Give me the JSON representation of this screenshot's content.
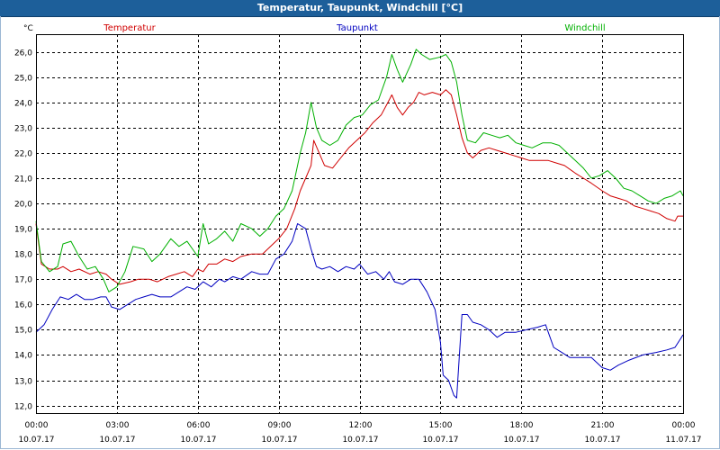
{
  "window": {
    "title": "Temperatur, Taupunkt, Windchill [°C]"
  },
  "chart_data": {
    "type": "line",
    "title": "Temperatur, Taupunkt, Windchill [°C]",
    "ylabel": "°C",
    "xlabel": "",
    "ylim": [
      11.7,
      26.7
    ],
    "xlim": [
      0,
      24
    ],
    "grid": true,
    "legend_placement": "top",
    "y_ticks": [
      "12,0",
      "13,0",
      "14,0",
      "15,0",
      "16,0",
      "17,0",
      "18,0",
      "19,0",
      "20,0",
      "21,0",
      "22,0",
      "23,0",
      "24,0",
      "25,0",
      "26,0"
    ],
    "x_ticks": [
      {
        "time": "00:00",
        "date": "10.07.17"
      },
      {
        "time": "03:00",
        "date": "10.07.17"
      },
      {
        "time": "06:00",
        "date": "10.07.17"
      },
      {
        "time": "09:00",
        "date": "10.07.17"
      },
      {
        "time": "12:00",
        "date": "10.07.17"
      },
      {
        "time": "15:00",
        "date": "10.07.17"
      },
      {
        "time": "18:00",
        "date": "10.07.17"
      },
      {
        "time": "21:00",
        "date": "10.07.17"
      },
      {
        "time": "00:00",
        "date": "11.07.17"
      }
    ],
    "series": [
      {
        "name": "Temperatur",
        "color": "#d00000",
        "points": [
          [
            0,
            19.2
          ],
          [
            0.2,
            17.6
          ],
          [
            0.5,
            17.4
          ],
          [
            0.8,
            17.4
          ],
          [
            1.0,
            17.5
          ],
          [
            1.3,
            17.3
          ],
          [
            1.6,
            17.4
          ],
          [
            2.0,
            17.2
          ],
          [
            2.3,
            17.3
          ],
          [
            2.6,
            17.2
          ],
          [
            2.8,
            17.0
          ],
          [
            3.1,
            16.8
          ],
          [
            3.5,
            16.9
          ],
          [
            3.8,
            17.0
          ],
          [
            4.2,
            17.0
          ],
          [
            4.5,
            16.9
          ],
          [
            4.9,
            17.1
          ],
          [
            5.2,
            17.2
          ],
          [
            5.5,
            17.3
          ],
          [
            5.8,
            17.1
          ],
          [
            6.0,
            17.4
          ],
          [
            6.2,
            17.3
          ],
          [
            6.4,
            17.6
          ],
          [
            6.7,
            17.6
          ],
          [
            7.0,
            17.8
          ],
          [
            7.3,
            17.7
          ],
          [
            7.6,
            17.9
          ],
          [
            8.0,
            18.0
          ],
          [
            8.4,
            18.0
          ],
          [
            8.7,
            18.3
          ],
          [
            9.0,
            18.6
          ],
          [
            9.3,
            19.0
          ],
          [
            9.6,
            19.8
          ],
          [
            9.8,
            20.5
          ],
          [
            10.0,
            21.0
          ],
          [
            10.2,
            21.5
          ],
          [
            10.3,
            22.5
          ],
          [
            10.5,
            22.0
          ],
          [
            10.7,
            21.5
          ],
          [
            11.0,
            21.4
          ],
          [
            11.3,
            21.8
          ],
          [
            11.6,
            22.2
          ],
          [
            11.9,
            22.5
          ],
          [
            12.2,
            22.8
          ],
          [
            12.5,
            23.2
          ],
          [
            12.8,
            23.5
          ],
          [
            13.0,
            23.9
          ],
          [
            13.2,
            24.3
          ],
          [
            13.4,
            23.8
          ],
          [
            13.6,
            23.5
          ],
          [
            13.8,
            23.8
          ],
          [
            14.0,
            24.0
          ],
          [
            14.2,
            24.4
          ],
          [
            14.4,
            24.3
          ],
          [
            14.7,
            24.4
          ],
          [
            15.0,
            24.3
          ],
          [
            15.2,
            24.5
          ],
          [
            15.4,
            24.3
          ],
          [
            15.6,
            23.5
          ],
          [
            15.8,
            22.6
          ],
          [
            16.0,
            22.0
          ],
          [
            16.2,
            21.8
          ],
          [
            16.5,
            22.1
          ],
          [
            16.8,
            22.2
          ],
          [
            17.1,
            22.1
          ],
          [
            17.4,
            22.0
          ],
          [
            17.7,
            21.9
          ],
          [
            18.0,
            21.8
          ],
          [
            18.3,
            21.7
          ],
          [
            18.6,
            21.7
          ],
          [
            19.0,
            21.7
          ],
          [
            19.3,
            21.6
          ],
          [
            19.6,
            21.5
          ],
          [
            20.0,
            21.2
          ],
          [
            20.3,
            21.0
          ],
          [
            20.6,
            20.8
          ],
          [
            21.0,
            20.5
          ],
          [
            21.3,
            20.3
          ],
          [
            21.6,
            20.2
          ],
          [
            21.9,
            20.1
          ],
          [
            22.2,
            19.9
          ],
          [
            22.5,
            19.8
          ],
          [
            22.8,
            19.7
          ],
          [
            23.1,
            19.6
          ],
          [
            23.4,
            19.4
          ],
          [
            23.7,
            19.3
          ],
          [
            23.8,
            19.5
          ],
          [
            24.0,
            19.5
          ]
        ]
      },
      {
        "name": "Taupunkt",
        "color": "#0000c0",
        "points": [
          [
            0,
            14.9
          ],
          [
            0.3,
            15.2
          ],
          [
            0.6,
            15.8
          ],
          [
            0.9,
            16.3
          ],
          [
            1.2,
            16.2
          ],
          [
            1.5,
            16.4
          ],
          [
            1.8,
            16.2
          ],
          [
            2.1,
            16.2
          ],
          [
            2.4,
            16.3
          ],
          [
            2.6,
            16.3
          ],
          [
            2.8,
            15.9
          ],
          [
            3.1,
            15.8
          ],
          [
            3.4,
            16.0
          ],
          [
            3.7,
            16.2
          ],
          [
            4.0,
            16.3
          ],
          [
            4.3,
            16.4
          ],
          [
            4.6,
            16.3
          ],
          [
            5.0,
            16.3
          ],
          [
            5.3,
            16.5
          ],
          [
            5.6,
            16.7
          ],
          [
            5.9,
            16.6
          ],
          [
            6.2,
            16.9
          ],
          [
            6.5,
            16.7
          ],
          [
            6.8,
            17.0
          ],
          [
            7.0,
            16.9
          ],
          [
            7.3,
            17.1
          ],
          [
            7.6,
            17.0
          ],
          [
            8.0,
            17.3
          ],
          [
            8.3,
            17.2
          ],
          [
            8.6,
            17.2
          ],
          [
            8.9,
            17.8
          ],
          [
            9.2,
            18.0
          ],
          [
            9.5,
            18.5
          ],
          [
            9.7,
            19.2
          ],
          [
            10.0,
            19.0
          ],
          [
            10.2,
            18.2
          ],
          [
            10.4,
            17.5
          ],
          [
            10.6,
            17.4
          ],
          [
            10.9,
            17.5
          ],
          [
            11.2,
            17.3
          ],
          [
            11.5,
            17.5
          ],
          [
            11.8,
            17.4
          ],
          [
            12.0,
            17.6
          ],
          [
            12.3,
            17.2
          ],
          [
            12.6,
            17.3
          ],
          [
            12.9,
            17.0
          ],
          [
            13.1,
            17.3
          ],
          [
            13.3,
            16.9
          ],
          [
            13.6,
            16.8
          ],
          [
            13.9,
            17.0
          ],
          [
            14.2,
            17.0
          ],
          [
            14.5,
            16.5
          ],
          [
            14.8,
            15.8
          ],
          [
            15.0,
            14.5
          ],
          [
            15.1,
            13.2
          ],
          [
            15.3,
            13.0
          ],
          [
            15.5,
            12.4
          ],
          [
            15.6,
            12.3
          ],
          [
            15.8,
            15.6
          ],
          [
            16.0,
            15.6
          ],
          [
            16.2,
            15.3
          ],
          [
            16.5,
            15.2
          ],
          [
            16.8,
            15.0
          ],
          [
            17.1,
            14.7
          ],
          [
            17.4,
            14.9
          ],
          [
            17.8,
            14.9
          ],
          [
            18.2,
            15.0
          ],
          [
            18.6,
            15.1
          ],
          [
            18.9,
            15.2
          ],
          [
            19.2,
            14.3
          ],
          [
            19.5,
            14.1
          ],
          [
            19.8,
            13.9
          ],
          [
            20.2,
            13.9
          ],
          [
            20.6,
            13.9
          ],
          [
            21.0,
            13.5
          ],
          [
            21.3,
            13.4
          ],
          [
            21.6,
            13.6
          ],
          [
            22.0,
            13.8
          ],
          [
            22.5,
            14.0
          ],
          [
            23.0,
            14.1
          ],
          [
            23.4,
            14.2
          ],
          [
            23.7,
            14.3
          ],
          [
            24.0,
            14.8
          ]
        ]
      },
      {
        "name": "Windchill",
        "color": "#00b000",
        "points": [
          [
            0,
            19.3
          ],
          [
            0.2,
            17.7
          ],
          [
            0.5,
            17.3
          ],
          [
            0.8,
            17.5
          ],
          [
            1.0,
            18.4
          ],
          [
            1.3,
            18.5
          ],
          [
            1.6,
            17.9
          ],
          [
            1.9,
            17.4
          ],
          [
            2.2,
            17.5
          ],
          [
            2.5,
            17.0
          ],
          [
            2.7,
            16.5
          ],
          [
            3.0,
            16.7
          ],
          [
            3.3,
            17.3
          ],
          [
            3.6,
            18.3
          ],
          [
            4.0,
            18.2
          ],
          [
            4.3,
            17.7
          ],
          [
            4.6,
            18.0
          ],
          [
            5.0,
            18.6
          ],
          [
            5.3,
            18.3
          ],
          [
            5.6,
            18.5
          ],
          [
            6.0,
            17.9
          ],
          [
            6.2,
            19.2
          ],
          [
            6.4,
            18.4
          ],
          [
            6.7,
            18.6
          ],
          [
            7.0,
            18.9
          ],
          [
            7.3,
            18.5
          ],
          [
            7.6,
            19.2
          ],
          [
            8.0,
            19.0
          ],
          [
            8.3,
            18.7
          ],
          [
            8.6,
            19.0
          ],
          [
            8.9,
            19.5
          ],
          [
            9.2,
            19.8
          ],
          [
            9.5,
            20.5
          ],
          [
            9.8,
            22.0
          ],
          [
            10.0,
            22.8
          ],
          [
            10.2,
            24.0
          ],
          [
            10.4,
            23.0
          ],
          [
            10.6,
            22.5
          ],
          [
            10.9,
            22.3
          ],
          [
            11.2,
            22.5
          ],
          [
            11.5,
            23.1
          ],
          [
            11.8,
            23.4
          ],
          [
            12.1,
            23.5
          ],
          [
            12.4,
            23.9
          ],
          [
            12.7,
            24.1
          ],
          [
            13.0,
            25.0
          ],
          [
            13.2,
            25.9
          ],
          [
            13.4,
            25.3
          ],
          [
            13.6,
            24.8
          ],
          [
            13.9,
            25.5
          ],
          [
            14.1,
            26.1
          ],
          [
            14.3,
            25.9
          ],
          [
            14.6,
            25.7
          ],
          [
            15.0,
            25.8
          ],
          [
            15.2,
            25.9
          ],
          [
            15.4,
            25.6
          ],
          [
            15.6,
            24.8
          ],
          [
            15.8,
            23.5
          ],
          [
            16.0,
            22.5
          ],
          [
            16.3,
            22.4
          ],
          [
            16.6,
            22.8
          ],
          [
            16.9,
            22.7
          ],
          [
            17.2,
            22.6
          ],
          [
            17.5,
            22.7
          ],
          [
            17.8,
            22.4
          ],
          [
            18.1,
            22.3
          ],
          [
            18.4,
            22.2
          ],
          [
            18.8,
            22.4
          ],
          [
            19.1,
            22.4
          ],
          [
            19.4,
            22.3
          ],
          [
            19.7,
            22.0
          ],
          [
            20.0,
            21.7
          ],
          [
            20.3,
            21.4
          ],
          [
            20.6,
            21.0
          ],
          [
            20.9,
            21.1
          ],
          [
            21.2,
            21.3
          ],
          [
            21.5,
            21.0
          ],
          [
            21.8,
            20.6
          ],
          [
            22.1,
            20.5
          ],
          [
            22.4,
            20.3
          ],
          [
            22.7,
            20.1
          ],
          [
            23.0,
            20.0
          ],
          [
            23.3,
            20.2
          ],
          [
            23.6,
            20.3
          ],
          [
            23.9,
            20.5
          ],
          [
            24.0,
            20.3
          ]
        ]
      }
    ]
  }
}
